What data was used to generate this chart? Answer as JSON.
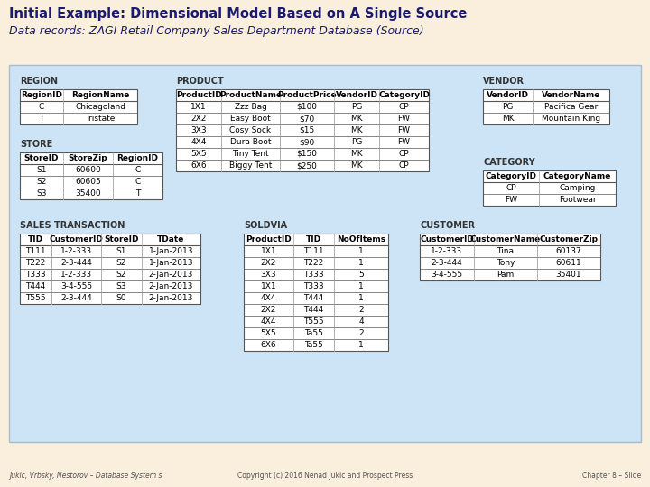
{
  "title": "Initial Example: Dimensional Model Based on A Single Source",
  "subtitle": "Data records: ZAGI Retail Company Sales Department Database (Source)",
  "title_color": "#1a1a6e",
  "subtitle_color": "#1a1a6e",
  "bg_color": "#faeedd",
  "box_bg": "#cce4f5",
  "footer_left": "Jukic, Vrbsky, Nestorov – Database System s",
  "footer_center": "Copyright (c) 2016 Nenad Jukic and Prospect Press",
  "footer_right": "Chapter 8 – Slide",
  "tables": {
    "REGION": {
      "headers": [
        "RegionID",
        "RegionName"
      ],
      "rows": [
        [
          "C",
          "Chicagoland"
        ],
        [
          "T",
          "Tristate"
        ]
      ]
    },
    "STORE": {
      "headers": [
        "StoreID",
        "StoreZip",
        "RegionID"
      ],
      "rows": [
        [
          "S1",
          "60600",
          "C"
        ],
        [
          "S2",
          "60605",
          "C"
        ],
        [
          "S3",
          "35400",
          "T"
        ]
      ]
    },
    "PRODUCT": {
      "headers": [
        "ProductID",
        "ProductName",
        "ProductPrice",
        "VendorID",
        "CategoryID"
      ],
      "rows": [
        [
          "1X1",
          "Zzz Bag",
          "$100",
          "PG",
          "CP"
        ],
        [
          "2X2",
          "Easy Boot",
          "$70",
          "MK",
          "FW"
        ],
        [
          "3X3",
          "Cosy Sock",
          "$15",
          "MK",
          "FW"
        ],
        [
          "4X4",
          "Dura Boot",
          "$90",
          "PG",
          "FW"
        ],
        [
          "5X5",
          "Tiny Tent",
          "$150",
          "MK",
          "CP"
        ],
        [
          "6X6",
          "Biggy Tent",
          "$250",
          "MK",
          "CP"
        ]
      ]
    },
    "VENDOR": {
      "headers": [
        "VendorID",
        "VendorName"
      ],
      "rows": [
        [
          "PG",
          "Pacifica Gear"
        ],
        [
          "MK",
          "Mountain King"
        ]
      ]
    },
    "CATEGORY": {
      "headers": [
        "CategoryID",
        "CategoryName"
      ],
      "rows": [
        [
          "CP",
          "Camping"
        ],
        [
          "FW",
          "Footwear"
        ]
      ]
    },
    "SALES TRANSACTION": {
      "headers": [
        "TID",
        "CustomerID",
        "StoreID",
        "TDate"
      ],
      "rows": [
        [
          "T111",
          "1-2-333",
          "S1",
          "1-Jan-2013"
        ],
        [
          "T222",
          "2-3-444",
          "S2",
          "1-Jan-2013"
        ],
        [
          "T333",
          "1-2-333",
          "S2",
          "2-Jan-2013"
        ],
        [
          "T444",
          "3-4-555",
          "S3",
          "2-Jan-2013"
        ],
        [
          "T555",
          "2-3-444",
          "S0",
          "2-Jan-2013"
        ]
      ]
    },
    "SOLDVIA": {
      "headers": [
        "ProductID",
        "TID",
        "NoOfItems"
      ],
      "rows": [
        [
          "1X1",
          "T111",
          "1"
        ],
        [
          "2X2",
          "T222",
          "1"
        ],
        [
          "3X3",
          "T333",
          "5"
        ],
        [
          "1X1",
          "T333",
          "1"
        ],
        [
          "4X4",
          "T444",
          "1"
        ],
        [
          "2X2",
          "T444",
          "2"
        ],
        [
          "4X4",
          "T555",
          "4"
        ],
        [
          "5X5",
          "Ta55",
          "2"
        ],
        [
          "6X6",
          "Ta55",
          "1"
        ]
      ]
    },
    "CUSTOMER": {
      "headers": [
        "CustomerID",
        "CustomerName",
        "CustomerZip"
      ],
      "rows": [
        [
          "1-2-333",
          "Tina",
          "60137"
        ],
        [
          "2-3-444",
          "Tony",
          "60611"
        ],
        [
          "3-4-555",
          "Pam",
          "35401"
        ]
      ]
    }
  }
}
